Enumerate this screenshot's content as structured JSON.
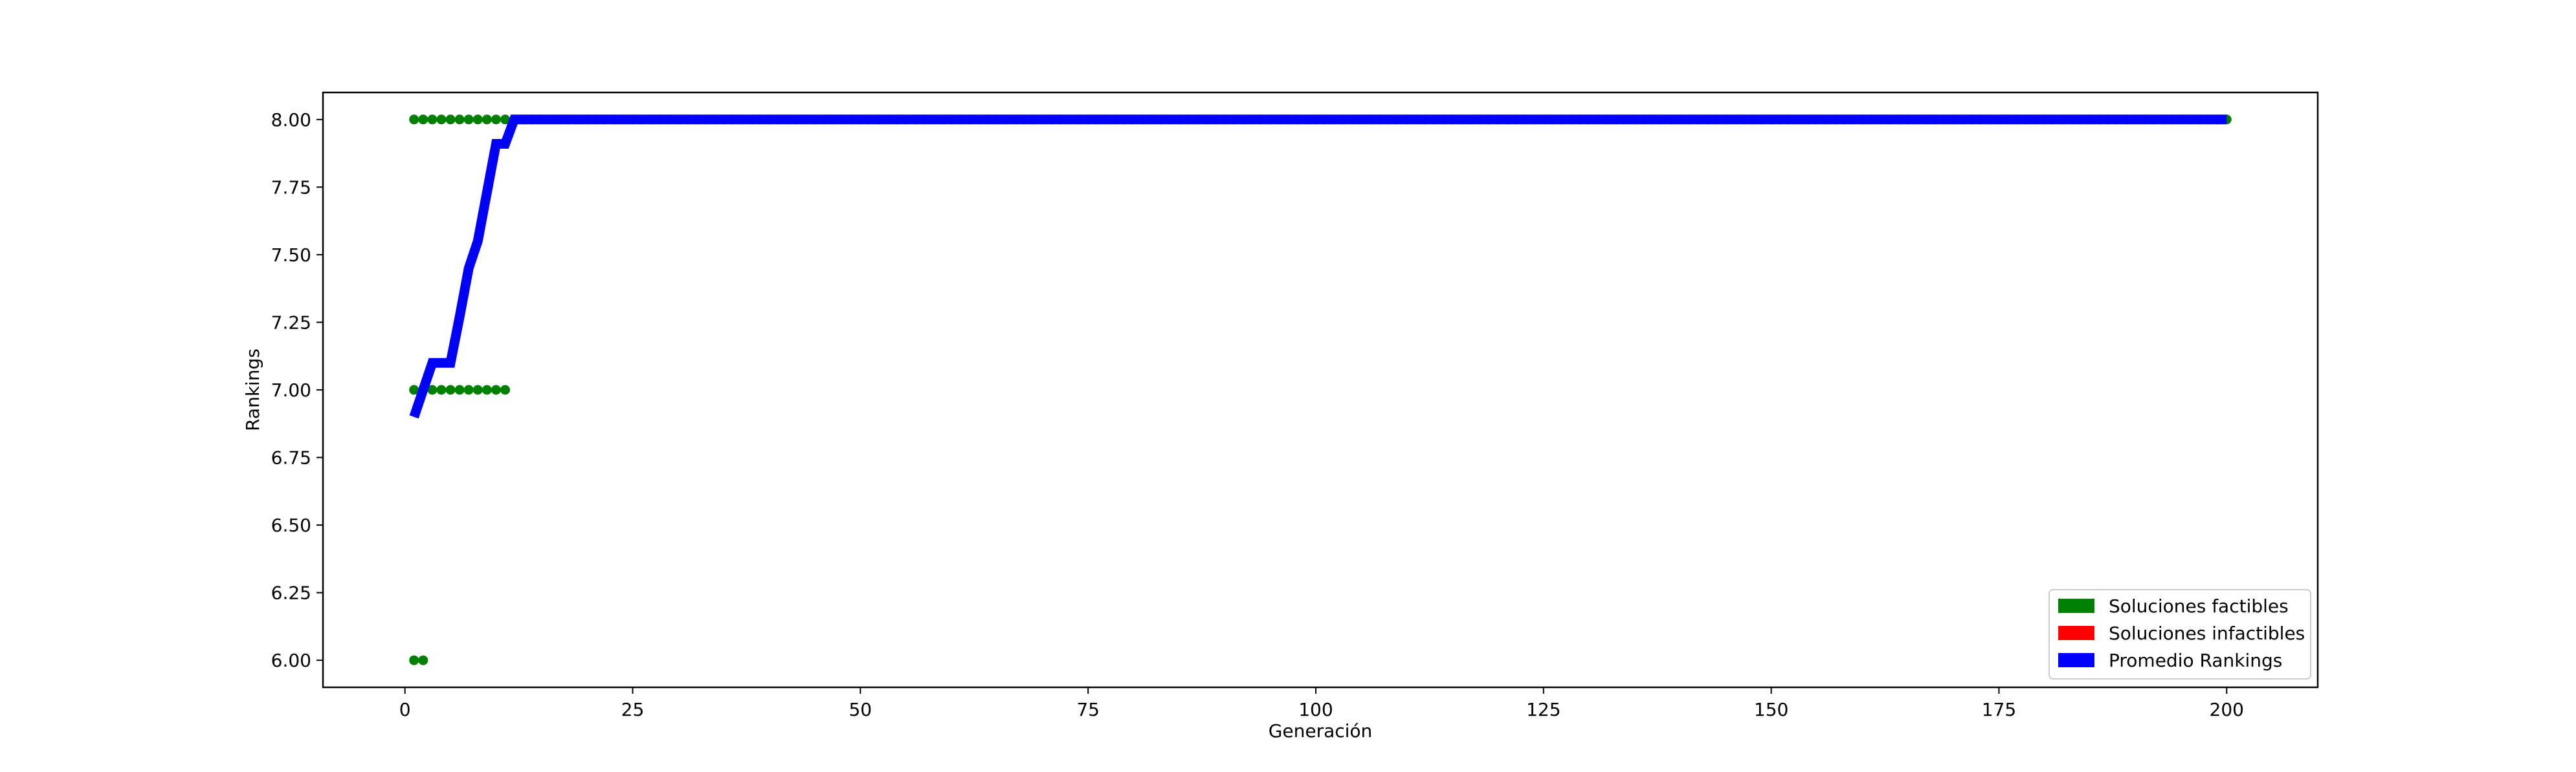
{
  "chart_data": {
    "type": "line",
    "title": "",
    "xlabel": "Generación",
    "ylabel": "Rankings",
    "xlim": [
      -9,
      210
    ],
    "ylim": [
      5.9,
      8.1
    ],
    "xticks": [
      0,
      25,
      50,
      75,
      100,
      125,
      150,
      175,
      200
    ],
    "yticks": [
      6.0,
      6.25,
      6.5,
      6.75,
      7.0,
      7.25,
      7.5,
      7.75,
      8.0
    ],
    "ytick_labels": [
      "6.00",
      "6.25",
      "6.50",
      "6.75",
      "7.00",
      "7.25",
      "7.50",
      "7.75",
      "8.00"
    ],
    "grid": false,
    "legend_position": "lower right",
    "legend": [
      {
        "label": "Soluciones factibles",
        "color": "#008000"
      },
      {
        "label": "Soluciones infactibles",
        "color": "#ff0000"
      },
      {
        "label": "Promedio Rankings",
        "color": "#0000ff"
      }
    ],
    "series": [
      {
        "name": "Soluciones factibles",
        "type": "scatter",
        "color": "#008000",
        "points": [
          [
            1,
            8
          ],
          [
            2,
            8
          ],
          [
            3,
            8
          ],
          [
            4,
            8
          ],
          [
            5,
            8
          ],
          [
            6,
            8
          ],
          [
            7,
            8
          ],
          [
            8,
            8
          ],
          [
            9,
            8
          ],
          [
            10,
            8
          ],
          [
            11,
            8
          ],
          [
            1,
            7
          ],
          [
            2,
            7
          ],
          [
            3,
            7
          ],
          [
            4,
            7
          ],
          [
            5,
            7
          ],
          [
            6,
            7
          ],
          [
            7,
            7
          ],
          [
            8,
            7
          ],
          [
            9,
            7
          ],
          [
            10,
            7
          ],
          [
            11,
            7
          ],
          [
            1,
            6
          ],
          [
            2,
            6
          ]
        ],
        "constant_from": {
          "x_start": 12,
          "x_end": 200,
          "y": 8
        }
      },
      {
        "name": "Soluciones infactibles",
        "type": "scatter",
        "color": "#ff0000",
        "points": []
      },
      {
        "name": "Promedio Rankings",
        "type": "line",
        "color": "#0000ff",
        "x": [
          1,
          2,
          3,
          4,
          5,
          6,
          7,
          8,
          9,
          10,
          11,
          12,
          200
        ],
        "y": [
          6.9,
          7.0,
          7.1,
          7.1,
          7.1,
          7.27,
          7.45,
          7.55,
          7.73,
          7.91,
          7.91,
          8.0,
          8.0
        ]
      }
    ]
  }
}
